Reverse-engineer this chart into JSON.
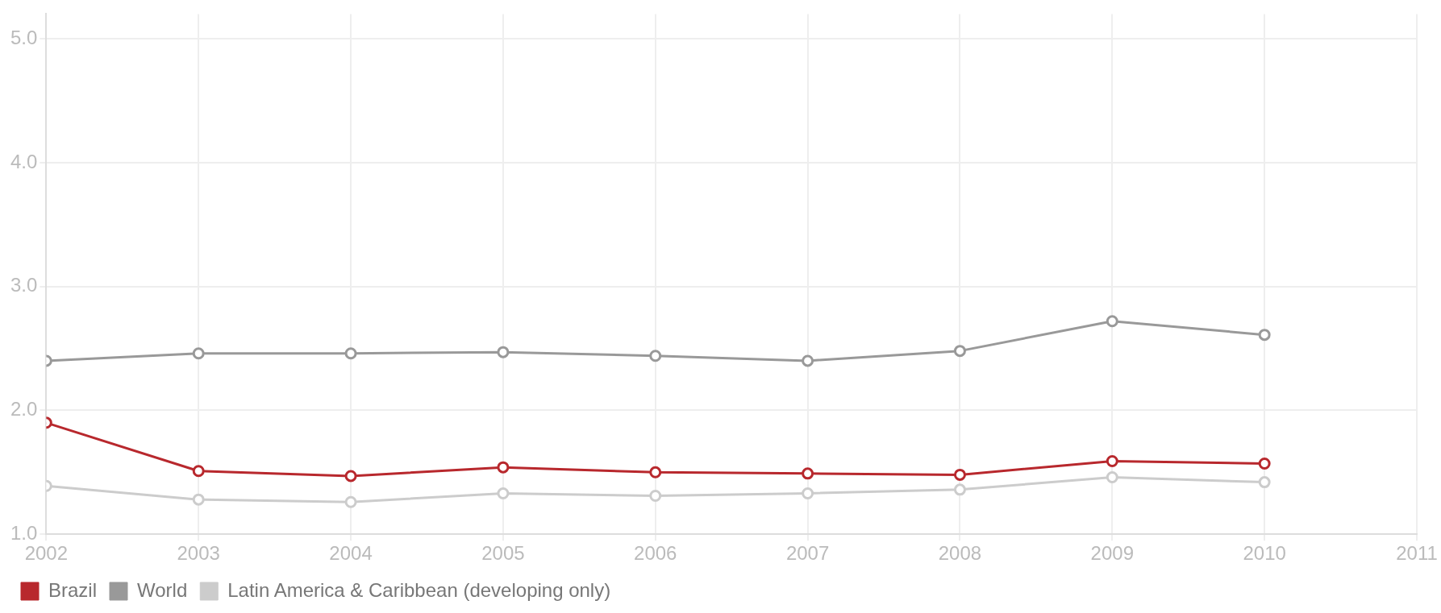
{
  "chart_data": {
    "type": "line",
    "x": [
      2002,
      2003,
      2004,
      2005,
      2006,
      2007,
      2008,
      2009,
      2010
    ],
    "series": [
      {
        "name": "Brazil",
        "color": "#b8282d",
        "values": [
          1.9,
          1.51,
          1.47,
          1.54,
          1.5,
          1.49,
          1.48,
          1.59,
          1.57
        ]
      },
      {
        "name": "World",
        "color": "#999999",
        "values": [
          2.4,
          2.46,
          2.46,
          2.47,
          2.44,
          2.4,
          2.48,
          2.72,
          2.61
        ]
      },
      {
        "name": "Latin America & Caribbean (developing only)",
        "color": "#cccccc",
        "values": [
          1.39,
          1.28,
          1.26,
          1.33,
          1.31,
          1.33,
          1.36,
          1.46,
          1.42
        ]
      }
    ],
    "xlim": [
      2002,
      2011
    ],
    "xticks": [
      2002,
      2003,
      2004,
      2005,
      2006,
      2007,
      2008,
      2009,
      2010,
      2011
    ],
    "ylim": [
      1,
      5.2
    ],
    "yticks": [
      {
        "value": 1,
        "label": "1.0"
      },
      {
        "value": 2,
        "label": "2.0"
      },
      {
        "value": 3,
        "label": "3.0"
      },
      {
        "value": 4,
        "label": "4.0"
      },
      {
        "value": 5,
        "label": "5.0"
      }
    ],
    "grid": true,
    "legend": "bottom left",
    "marker": "circle",
    "line_style": "solid"
  }
}
